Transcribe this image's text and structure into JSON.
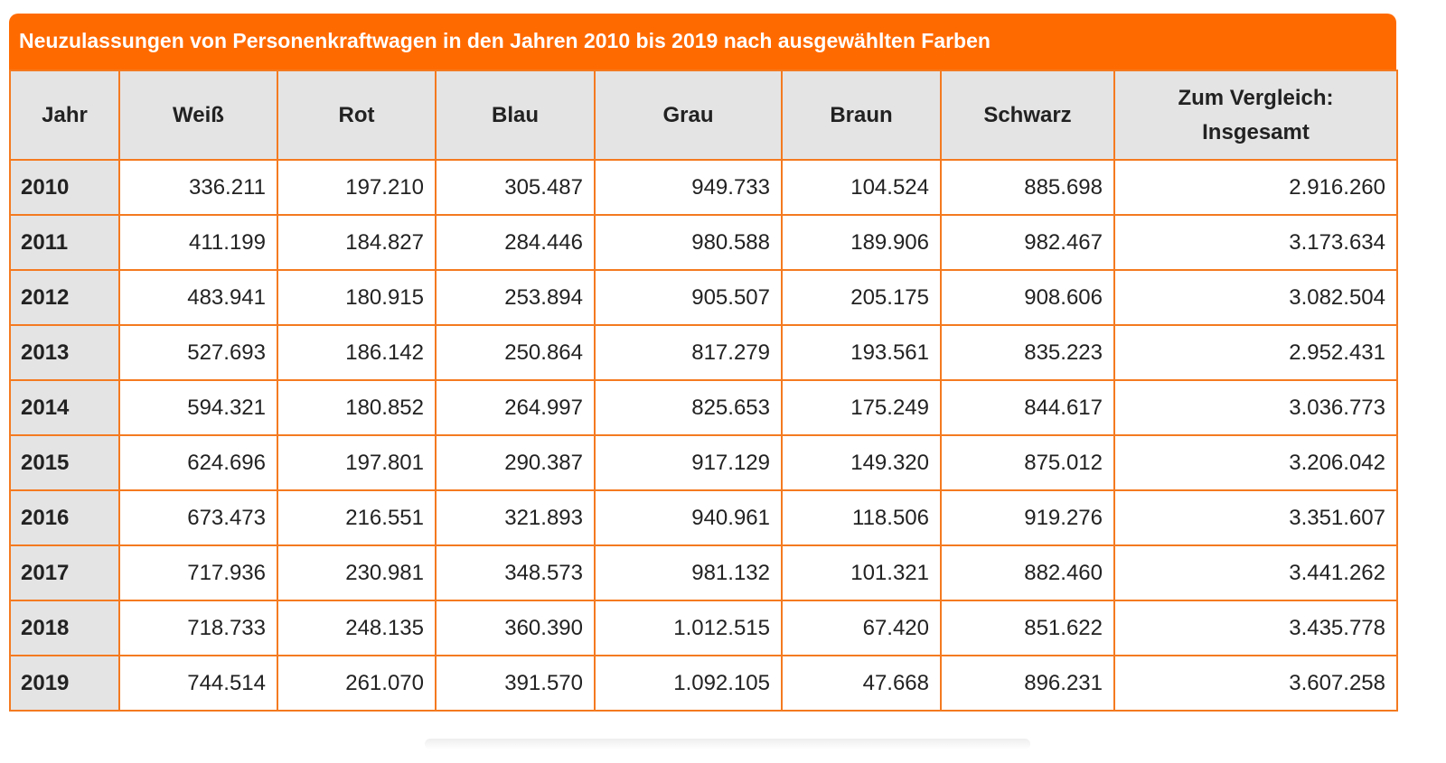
{
  "title": "Neuzulassungen von Personenkraftwagen in den Jahren 2010 bis 2019 nach ausgewählten Farben",
  "accent_color": "#ff6a00",
  "header_bg_color": "#e4e4e4",
  "columns": [
    "Jahr",
    "Weiß",
    "Rot",
    "Blau",
    "Grau",
    "Braun",
    "Schwarz",
    "Zum Vergleich: Insgesamt"
  ],
  "rows": [
    [
      "2010",
      "336.211",
      "197.210",
      "305.487",
      "949.733",
      "104.524",
      "885.698",
      "2.916.260"
    ],
    [
      "2011",
      "411.199",
      "184.827",
      "284.446",
      "980.588",
      "189.906",
      "982.467",
      "3.173.634"
    ],
    [
      "2012",
      "483.941",
      "180.915",
      "253.894",
      "905.507",
      "205.175",
      "908.606",
      "3.082.504"
    ],
    [
      "2013",
      "527.693",
      "186.142",
      "250.864",
      "817.279",
      "193.561",
      "835.223",
      "2.952.431"
    ],
    [
      "2014",
      "594.321",
      "180.852",
      "264.997",
      "825.653",
      "175.249",
      "844.617",
      "3.036.773"
    ],
    [
      "2015",
      "624.696",
      "197.801",
      "290.387",
      "917.129",
      "149.320",
      "875.012",
      "3.206.042"
    ],
    [
      "2016",
      "673.473",
      "216.551",
      "321.893",
      "940.961",
      "118.506",
      "919.276",
      "3.351.607"
    ],
    [
      "2017",
      "717.936",
      "230.981",
      "348.573",
      "981.132",
      "101.321",
      "882.460",
      "3.441.262"
    ],
    [
      "2018",
      "718.733",
      "248.135",
      "360.390",
      "1.012.515",
      "67.420",
      "851.622",
      "3.435.778"
    ],
    [
      "2019",
      "744.514",
      "261.070",
      "391.570",
      "1.092.105",
      "47.668",
      "896.231",
      "3.607.258"
    ]
  ]
}
